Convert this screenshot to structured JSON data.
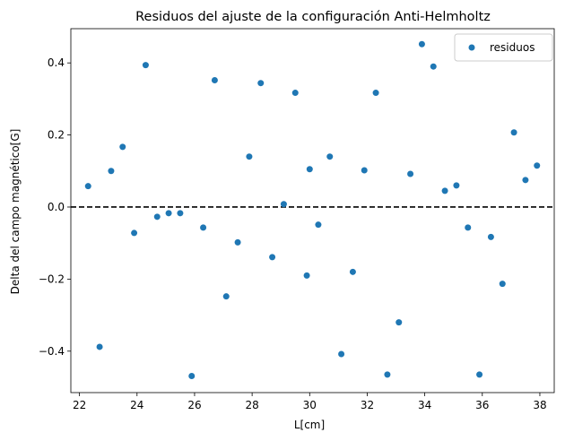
{
  "chart_data": {
    "type": "scatter",
    "title": "Residuos del ajuste de la configuración Anti-Helmholtz",
    "xlabel": "L[cm]",
    "ylabel": "Delta del campo magnético[G]",
    "xlim": [
      21.7,
      38.5
    ],
    "ylim": [
      -0.515,
      0.495
    ],
    "xticks": [
      22,
      24,
      26,
      28,
      30,
      32,
      34,
      36,
      38
    ],
    "yticks": [
      -0.4,
      -0.2,
      0.0,
      0.2,
      0.4
    ],
    "ytick_labels": [
      "−0.4",
      "−0.2",
      "0.0",
      "0.2",
      "0.4"
    ],
    "grid": false,
    "legend_position": "top-right",
    "reference_line": {
      "y": 0.0,
      "style": "dashed",
      "color": "#000000"
    },
    "series": [
      {
        "name": "residuos",
        "color": "#1f77b4",
        "x": [
          22.3,
          22.7,
          23.1,
          23.5,
          23.9,
          24.3,
          24.7,
          25.1,
          25.5,
          25.9,
          26.3,
          26.7,
          27.1,
          27.5,
          27.9,
          28.3,
          28.7,
          29.1,
          29.5,
          29.9,
          30.0,
          30.3,
          30.7,
          31.1,
          31.5,
          31.9,
          32.3,
          32.7,
          33.1,
          33.5,
          33.9,
          34.3,
          34.7,
          35.1,
          35.5,
          35.9,
          36.3,
          36.7,
          37.1,
          37.5,
          37.9
        ],
        "y": [
          0.058,
          -0.388,
          0.1,
          0.167,
          -0.072,
          0.394,
          -0.027,
          -0.017,
          -0.017,
          -0.469,
          -0.057,
          0.352,
          -0.248,
          -0.098,
          0.14,
          0.344,
          -0.139,
          0.008,
          0.317,
          -0.19,
          0.105,
          -0.049,
          0.14,
          -0.408,
          -0.18,
          0.102,
          0.317,
          -0.465,
          -0.32,
          0.092,
          0.452,
          0.39,
          0.045,
          0.06,
          -0.057,
          -0.465,
          -0.083,
          -0.213,
          0.207,
          0.075,
          0.115
        ]
      }
    ]
  }
}
